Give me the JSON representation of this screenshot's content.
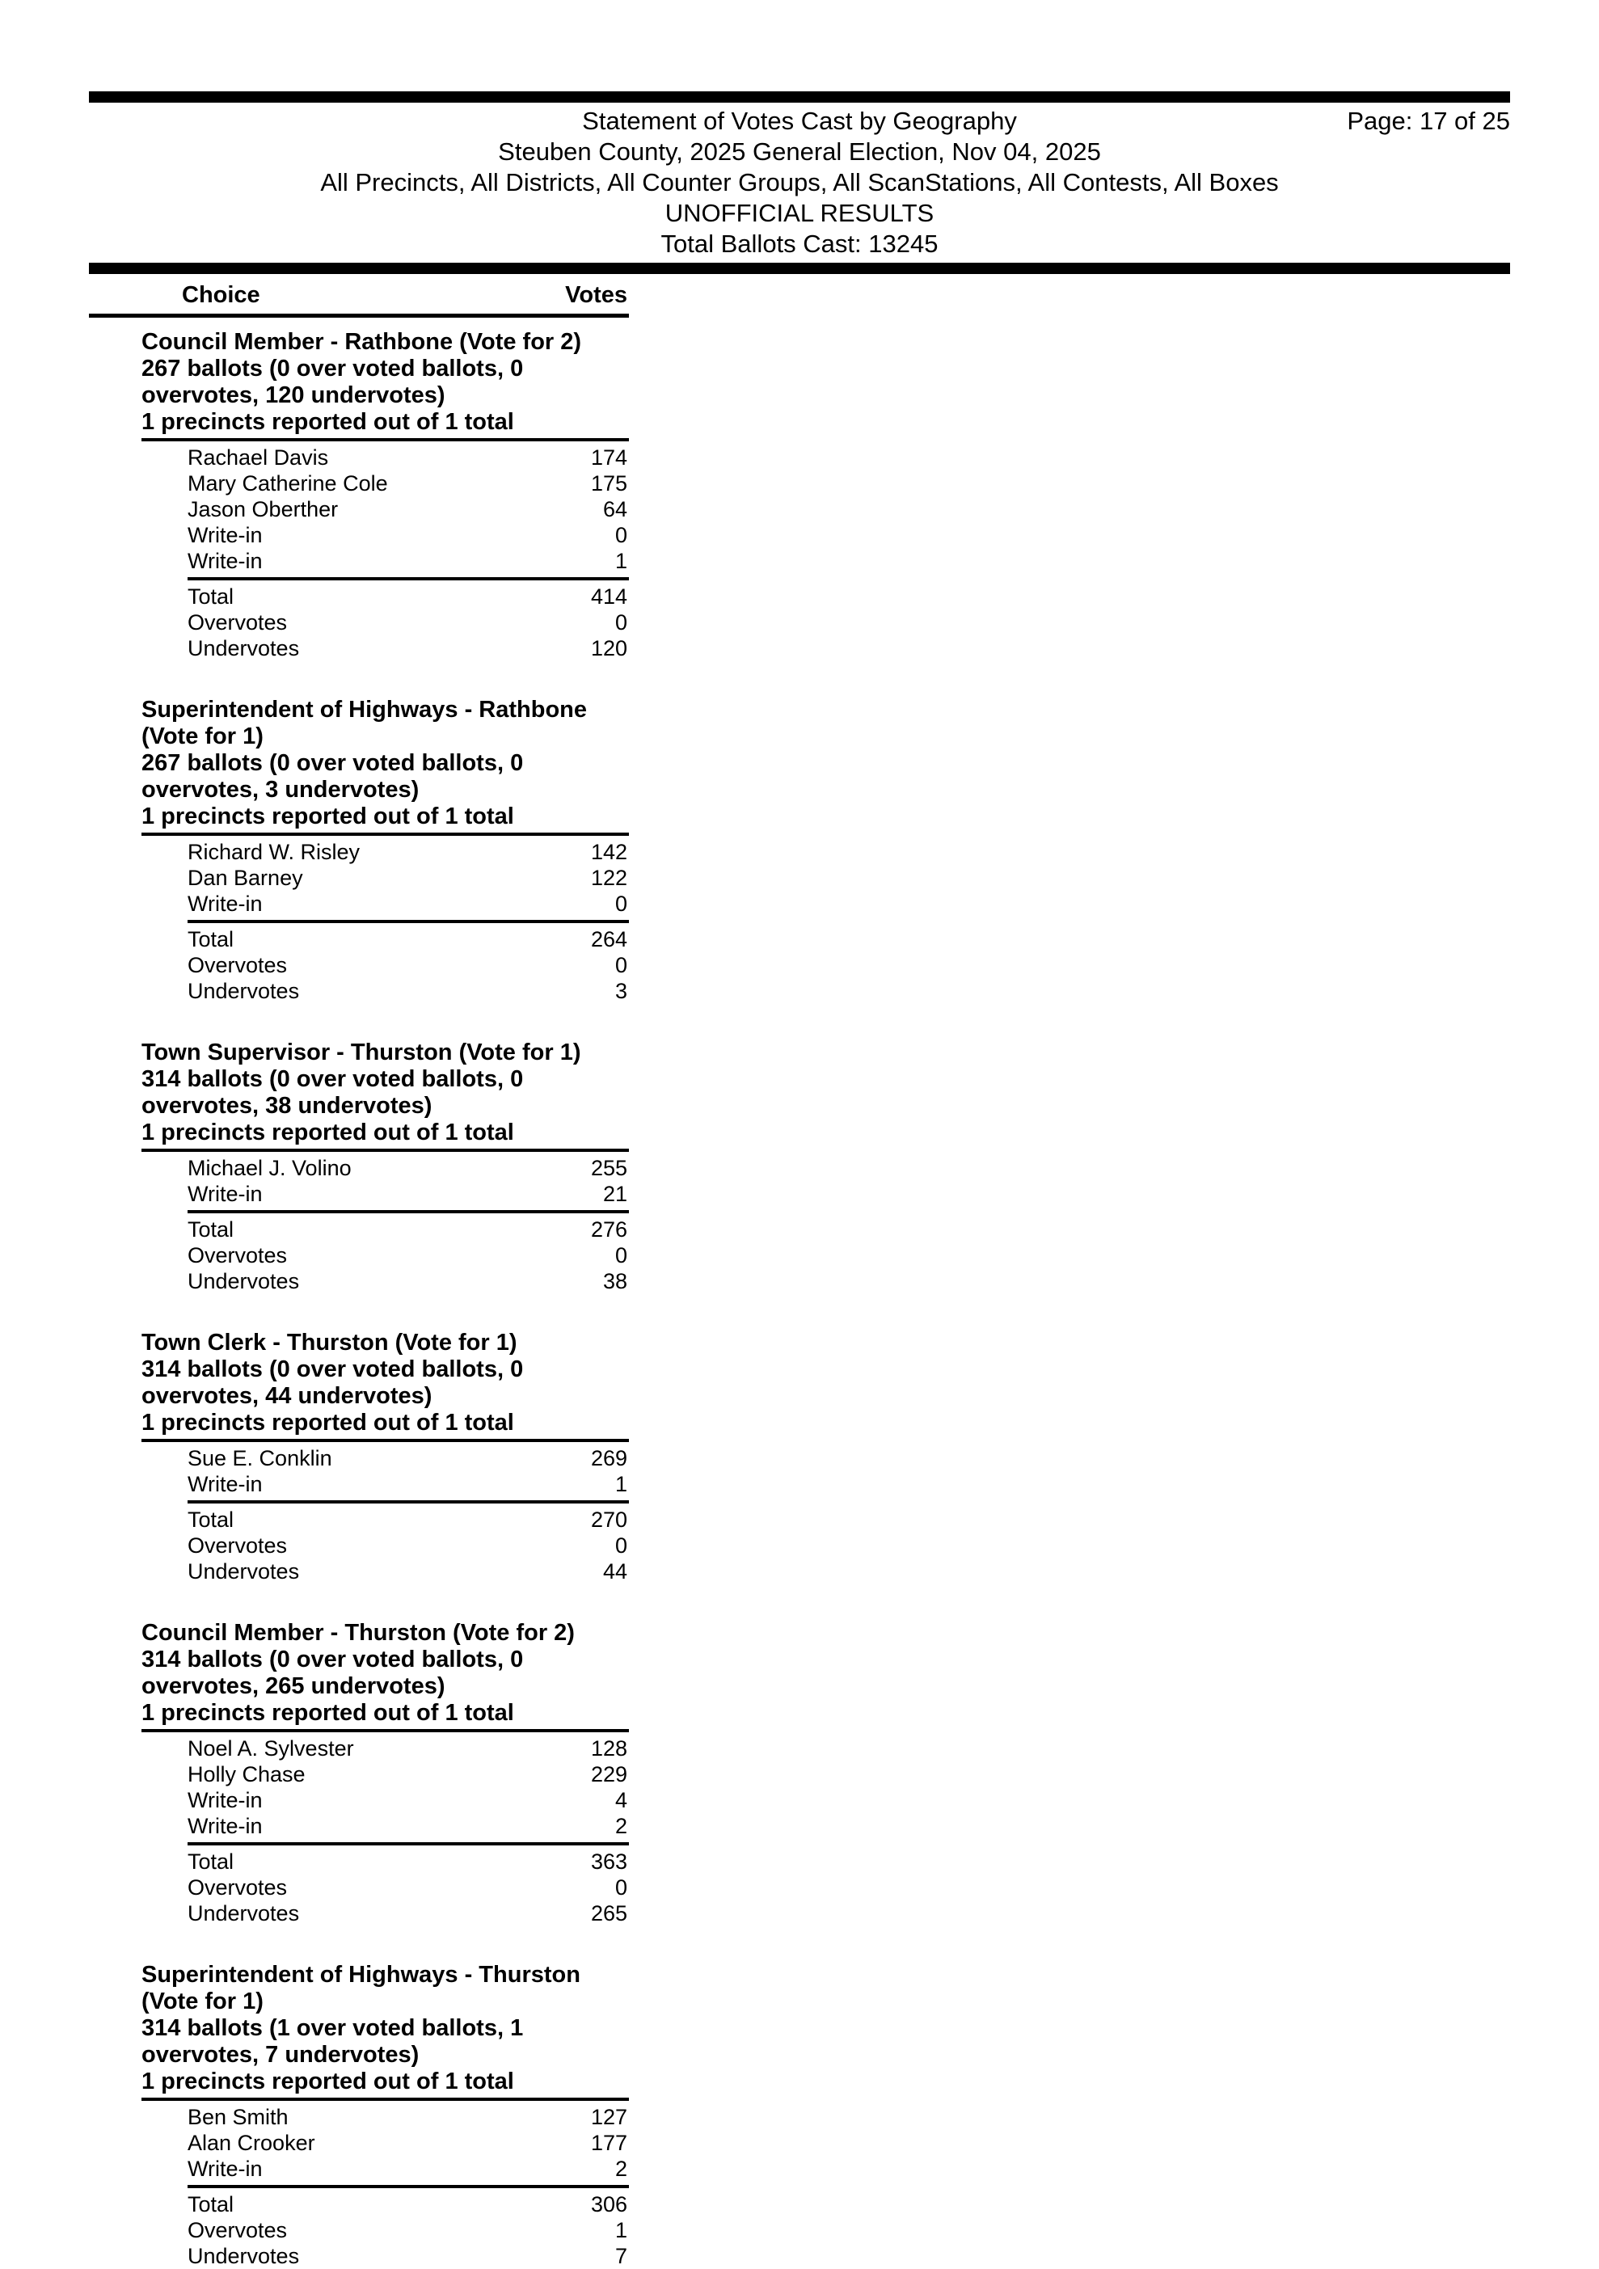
{
  "colors": {
    "ink": "#000000",
    "paper": "#ffffff"
  },
  "header": {
    "title": "Statement of Votes Cast by Geography",
    "page_label": "Page: 17 of 25",
    "election_line": "Steuben County, 2025 General Election, Nov 04, 2025",
    "scope_line": "All Precincts, All Districts, All Counter Groups, All ScanStations, All Contests, All Boxes",
    "status_line": "UNOFFICIAL RESULTS",
    "total_ballots_line": "Total Ballots Cast: 13245"
  },
  "table": {
    "choice_header": "Choice",
    "votes_header": "Votes"
  },
  "contests": [
    {
      "title": "Council Member - Rathbone (Vote for 2)",
      "ballots_line": "267 ballots (0 over voted ballots, 0 overvotes, 120 undervotes)",
      "precincts_line": "1 precincts reported out of 1 total",
      "candidates": [
        {
          "name": "Rachael Davis",
          "votes": "174"
        },
        {
          "name": "Mary Catherine Cole",
          "votes": "175"
        },
        {
          "name": "Jason Oberther",
          "votes": "64"
        },
        {
          "name": "Write-in",
          "votes": "0"
        },
        {
          "name": "Write-in",
          "votes": "1"
        }
      ],
      "totals": [
        {
          "name": "Total",
          "votes": "414"
        },
        {
          "name": "Overvotes",
          "votes": "0"
        },
        {
          "name": "Undervotes",
          "votes": "120"
        }
      ]
    },
    {
      "title": "Superintendent of Highways - Rathbone (Vote for 1)",
      "ballots_line": "267 ballots (0 over voted ballots, 0 overvotes, 3 undervotes)",
      "precincts_line": "1 precincts reported out of 1 total",
      "candidates": [
        {
          "name": "Richard W. Risley",
          "votes": "142"
        },
        {
          "name": "Dan Barney",
          "votes": "122"
        },
        {
          "name": "Write-in",
          "votes": "0"
        }
      ],
      "totals": [
        {
          "name": "Total",
          "votes": "264"
        },
        {
          "name": "Overvotes",
          "votes": "0"
        },
        {
          "name": "Undervotes",
          "votes": "3"
        }
      ]
    },
    {
      "title": "Town Supervisor - Thurston (Vote for 1)",
      "ballots_line": "314 ballots (0 over voted ballots, 0 overvotes, 38 undervotes)",
      "precincts_line": "1 precincts reported out of 1 total",
      "candidates": [
        {
          "name": "Michael J. Volino",
          "votes": "255"
        },
        {
          "name": "Write-in",
          "votes": "21"
        }
      ],
      "totals": [
        {
          "name": "Total",
          "votes": "276"
        },
        {
          "name": "Overvotes",
          "votes": "0"
        },
        {
          "name": "Undervotes",
          "votes": "38"
        }
      ]
    },
    {
      "title": "Town Clerk - Thurston (Vote for 1)",
      "ballots_line": "314 ballots (0 over voted ballots, 0 overvotes, 44 undervotes)",
      "precincts_line": "1 precincts reported out of 1 total",
      "candidates": [
        {
          "name": "Sue E. Conklin",
          "votes": "269"
        },
        {
          "name": "Write-in",
          "votes": "1"
        }
      ],
      "totals": [
        {
          "name": "Total",
          "votes": "270"
        },
        {
          "name": "Overvotes",
          "votes": "0"
        },
        {
          "name": "Undervotes",
          "votes": "44"
        }
      ]
    },
    {
      "title": "Council Member - Thurston (Vote for 2)",
      "ballots_line": "314 ballots (0 over voted ballots, 0 overvotes, 265 undervotes)",
      "precincts_line": "1 precincts reported out of 1 total",
      "candidates": [
        {
          "name": "Noel A. Sylvester",
          "votes": "128"
        },
        {
          "name": "Holly Chase",
          "votes": "229"
        },
        {
          "name": "Write-in",
          "votes": "4"
        },
        {
          "name": "Write-in",
          "votes": "2"
        }
      ],
      "totals": [
        {
          "name": "Total",
          "votes": "363"
        },
        {
          "name": "Overvotes",
          "votes": "0"
        },
        {
          "name": "Undervotes",
          "votes": "265"
        }
      ]
    },
    {
      "title": "Superintendent of Highways - Thurston (Vote for 1)",
      "ballots_line": "314 ballots (1 over voted ballots, 1 overvotes, 7 undervotes)",
      "precincts_line": "1 precincts reported out of 1 total",
      "candidates": [
        {
          "name": "Ben Smith",
          "votes": "127"
        },
        {
          "name": "Alan Crooker",
          "votes": "177"
        },
        {
          "name": "Write-in",
          "votes": "2"
        }
      ],
      "totals": [
        {
          "name": "Total",
          "votes": "306"
        },
        {
          "name": "Overvotes",
          "votes": "1"
        },
        {
          "name": "Undervotes",
          "votes": "7"
        }
      ]
    }
  ]
}
